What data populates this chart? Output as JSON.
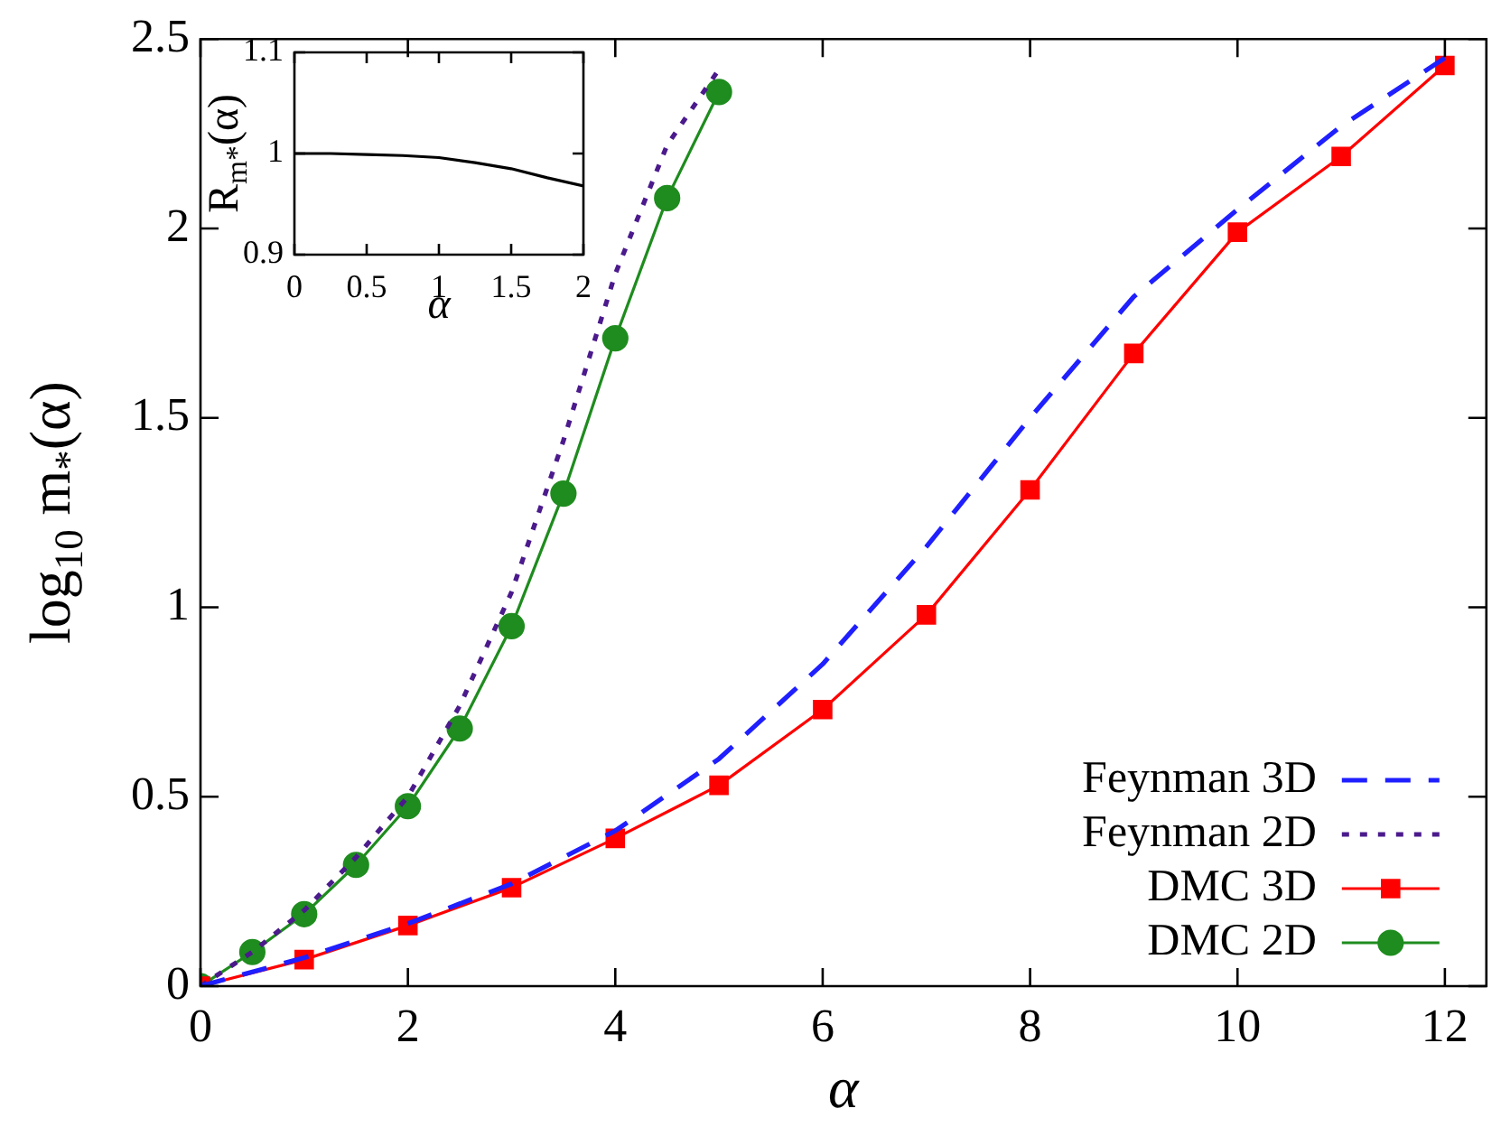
{
  "chart_data": [
    {
      "type": "line",
      "xlabel": "α",
      "ylabel": "log$_{10}$ m$_{*}$(α)",
      "xlim": [
        0,
        12.4
      ],
      "ylim": [
        0,
        2.5
      ],
      "xticks": [
        0,
        2,
        4,
        6,
        8,
        10,
        12
      ],
      "yticks": [
        0,
        0.5,
        1,
        1.5,
        2,
        2.5
      ],
      "grid": false,
      "legend": "bottom right",
      "series": [
        {
          "name": "Feynman 3D",
          "color": "#1f1fff",
          "line_style": "dashed",
          "marker": "none",
          "x": [
            0,
            1,
            2,
            3,
            4,
            5,
            6,
            7,
            8,
            9,
            10,
            11,
            12
          ],
          "values": [
            0,
            0.075,
            0.165,
            0.27,
            0.41,
            0.6,
            0.85,
            1.16,
            1.5,
            1.82,
            2.05,
            2.27,
            2.45
          ]
        },
        {
          "name": "Feynman 2D",
          "color": "#4b1a8c",
          "line_style": "dotted",
          "marker": "none",
          "x": [
            0,
            0.5,
            1,
            1.5,
            2,
            2.5,
            3,
            3.5,
            4,
            4.5,
            5
          ],
          "values": [
            0,
            0.09,
            0.2,
            0.34,
            0.5,
            0.74,
            1.04,
            1.44,
            1.88,
            2.22,
            2.42
          ]
        },
        {
          "name": "DMC 3D",
          "color": "#ff0000",
          "line_style": "solid",
          "marker": "square",
          "x": [
            0,
            1,
            2,
            3,
            4,
            5,
            6,
            7,
            8,
            9,
            10,
            11,
            12
          ],
          "values": [
            0,
            0.07,
            0.16,
            0.26,
            0.39,
            0.53,
            0.73,
            0.98,
            1.31,
            1.67,
            1.99,
            2.19,
            2.43
          ]
        },
        {
          "name": "DMC 2D",
          "color": "#1e8c1e",
          "line_style": "solid",
          "marker": "circle",
          "x": [
            0,
            0.5,
            1,
            1.5,
            2,
            2.5,
            3,
            3.5,
            4,
            4.5,
            5
          ],
          "values": [
            0,
            0.09,
            0.19,
            0.32,
            0.475,
            0.68,
            0.95,
            1.3,
            1.71,
            2.08,
            2.36
          ]
        }
      ]
    },
    {
      "type": "line",
      "xlabel": "α",
      "ylabel": "R$_{m*}$(α)",
      "xlim": [
        0,
        2
      ],
      "ylim": [
        0.9,
        1.1
      ],
      "xticks": [
        0,
        0.5,
        1,
        1.5,
        2
      ],
      "yticks": [
        0.9,
        1,
        1.1
      ],
      "grid": false,
      "legend": false,
      "series": [
        {
          "color": "#000000",
          "line_style": "solid",
          "marker": "none",
          "x": [
            0,
            0.25,
            0.5,
            0.75,
            1,
            1.25,
            1.5,
            1.75,
            2
          ],
          "values": [
            1,
            1,
            0.999,
            0.998,
            0.996,
            0.991,
            0.985,
            0.976,
            0.968
          ]
        }
      ]
    }
  ]
}
